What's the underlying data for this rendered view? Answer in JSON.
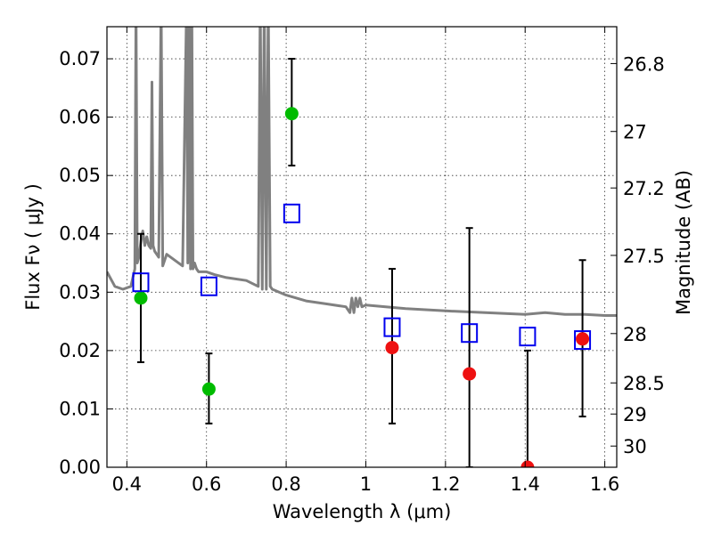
{
  "chart_data": {
    "type": "scatter",
    "title": "",
    "xlabel": "Wavelength  λ (μm)",
    "ylabel": "Flux  Fν  ( μJy )",
    "y2label": "Magnitude (AB)",
    "xlim": [
      0.35,
      1.63
    ],
    "ylim": [
      0.0,
      0.0755
    ],
    "grid": true,
    "x_ticks": [
      0.4,
      0.6,
      0.8,
      1.0,
      1.2,
      1.4,
      1.6
    ],
    "x_tick_labels": [
      "0.4",
      "0.6",
      "0.8",
      "1",
      "1.2",
      "1.4",
      "1.6"
    ],
    "y_ticks": [
      0.0,
      0.01,
      0.02,
      0.03,
      0.04,
      0.05,
      0.06,
      0.07
    ],
    "y_tick_labels": [
      "0.00",
      "0.01",
      "0.02",
      "0.03",
      "0.04",
      "0.05",
      "0.06",
      "0.07"
    ],
    "y2_ticks": [
      26.8,
      27,
      27.2,
      27.5,
      28,
      28.5,
      29,
      30
    ],
    "y2_tick_labels": [
      "26.8",
      "27",
      "27.2",
      "27.5",
      "28",
      "28.5",
      "29",
      "30"
    ],
    "series": [
      {
        "kind": "errorbar",
        "color": "#00bb00",
        "x": [
          0.435,
          0.606,
          0.814
        ],
        "y": [
          0.029,
          0.0134,
          0.0606
        ],
        "yerr_low": [
          0.018,
          0.0075,
          0.0517
        ],
        "yerr_high": [
          0.04,
          0.0195,
          0.07
        ]
      },
      {
        "kind": "errorbar",
        "color": "#ee1111",
        "x": [
          1.066,
          1.26,
          1.406,
          1.544
        ],
        "y": [
          0.0205,
          0.016,
          0.0,
          0.022
        ],
        "yerr_low": [
          0.0075,
          0.0,
          0.0,
          0.0087
        ],
        "yerr_high": [
          0.034,
          0.041,
          0.02,
          0.0355
        ]
      },
      {
        "kind": "open-square",
        "color": "#0000ee",
        "x": [
          0.435,
          0.606,
          0.814,
          1.066,
          1.26,
          1.406,
          1.544
        ],
        "y": [
          0.0317,
          0.031,
          0.0435,
          0.024,
          0.023,
          0.0224,
          0.0218
        ]
      },
      {
        "kind": "line",
        "color": "#808080",
        "x": [
          0.35,
          0.37,
          0.39,
          0.41,
          0.42,
          0.423,
          0.426,
          0.43,
          0.436,
          0.44,
          0.445,
          0.45,
          0.455,
          0.46,
          0.463,
          0.466,
          0.47,
          0.48,
          0.486,
          0.49,
          0.5,
          0.52,
          0.54,
          0.55,
          0.553,
          0.556,
          0.56,
          0.563,
          0.566,
          0.57,
          0.575,
          0.58,
          0.6,
          0.62,
          0.65,
          0.7,
          0.73,
          0.735,
          0.74,
          0.745,
          0.75,
          0.755,
          0.76,
          0.765,
          0.8,
          0.85,
          0.9,
          0.95,
          0.96,
          0.965,
          0.97,
          0.975,
          0.98,
          0.985,
          0.99,
          1.0,
          1.05,
          1.1,
          1.2,
          1.3,
          1.4,
          1.45,
          1.5,
          1.55,
          1.6,
          1.63
        ],
        "y": [
          0.0335,
          0.031,
          0.0305,
          0.031,
          0.034,
          0.08,
          0.035,
          0.036,
          0.039,
          0.0405,
          0.038,
          0.0395,
          0.038,
          0.0375,
          0.066,
          0.038,
          0.037,
          0.036,
          0.08,
          0.0345,
          0.0365,
          0.0355,
          0.0345,
          0.08,
          0.035,
          0.08,
          0.034,
          0.08,
          0.034,
          0.035,
          0.034,
          0.0335,
          0.0335,
          0.033,
          0.0325,
          0.032,
          0.031,
          0.08,
          0.0305,
          0.08,
          0.0305,
          0.08,
          0.031,
          0.0305,
          0.0295,
          0.0285,
          0.028,
          0.0275,
          0.0265,
          0.029,
          0.0265,
          0.029,
          0.0275,
          0.029,
          0.0275,
          0.0278,
          0.0275,
          0.0272,
          0.0268,
          0.0265,
          0.0262,
          0.0265,
          0.0262,
          0.0262,
          0.026,
          0.026
        ]
      }
    ]
  }
}
